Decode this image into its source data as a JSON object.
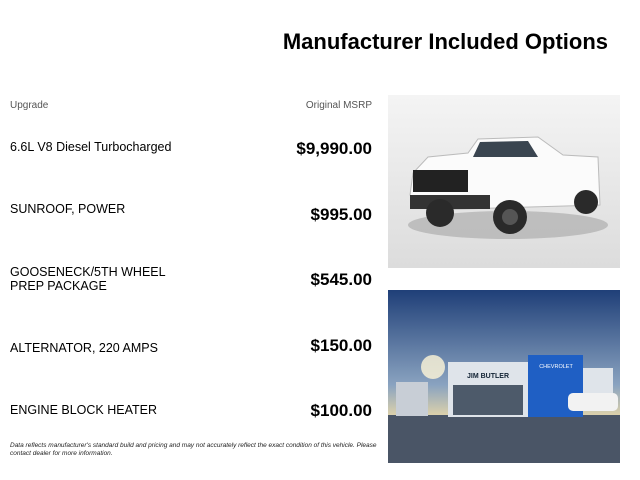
{
  "title": "Manufacturer Included Options",
  "headers": {
    "upgrade": "Upgrade",
    "msrp": "Original MSRP"
  },
  "options": [
    {
      "name": "6.6L V8 Diesel Turbocharged",
      "price": "$9,990.00"
    },
    {
      "name": "SUNROOF, POWER",
      "price": "$995.00"
    },
    {
      "name": "GOOSENECK/5TH WHEEL PREP PACKAGE",
      "price": "$545.00"
    },
    {
      "name": "ALTERNATOR, 220 AMPS",
      "price": "$150.00"
    },
    {
      "name": "ENGINE BLOCK HEATER",
      "price": "$100.00"
    }
  ],
  "disclaimer": "Data reflects manufacturer's standard build and pricing and may not accurately reflect the exact condition of this vehicle. Please contact dealer for more information.",
  "images": {
    "dealer_sign": "JIM BUTLER",
    "brand_sign": "CHEVROLET"
  }
}
